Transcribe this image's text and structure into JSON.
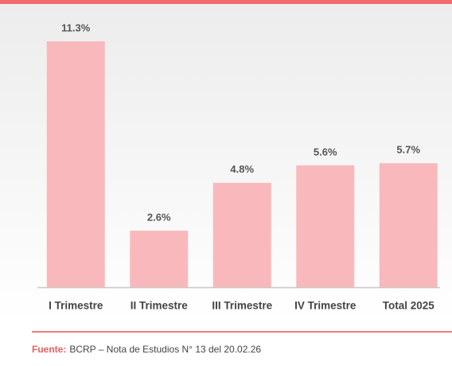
{
  "chart_data": {
    "type": "bar",
    "categories": [
      "I Trimestre",
      "II Trimestre",
      "III Trimestre",
      "IV Trimestre",
      "Total 2025"
    ],
    "values": [
      11.3,
      2.6,
      4.8,
      5.6,
      5.7
    ],
    "value_labels": [
      "11.3%",
      "2.6%",
      "4.8%",
      "5.6%",
      "5.7%"
    ],
    "color": "#f9b9bc"
  },
  "footer": {
    "label": "Fuente:",
    "text": "BCRP – Nota de Estudios N° 13 del 20.02.26"
  }
}
